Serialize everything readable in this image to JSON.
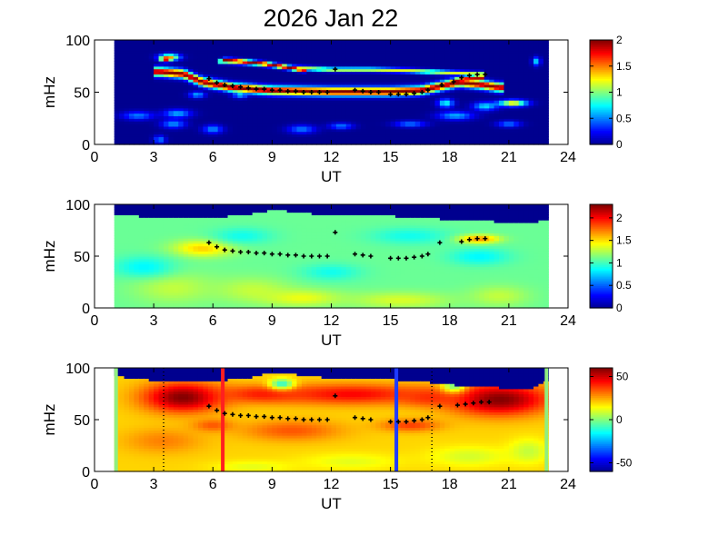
{
  "title": "2026 Jan 22",
  "chart_data": [
    {
      "type": "heatmap",
      "xlabel": "UT",
      "ylabel": "mHz",
      "xlim": [
        0,
        24
      ],
      "ylim": [
        0,
        100
      ],
      "x_ticks": [
        "0",
        "3",
        "6",
        "9",
        "12",
        "15",
        "18",
        "21",
        "24"
      ],
      "y_ticks": [
        "0",
        "50",
        "100"
      ],
      "data_extent_ut": [
        1.0,
        23.0
      ],
      "colorbar": {
        "range": [
          0,
          2
        ],
        "ticks": [
          "0",
          "0.5",
          "1",
          "1.5",
          "2"
        ]
      },
      "colormap": [
        "#00008f",
        "#0000ff",
        "#0080ff",
        "#00ffff",
        "#80ff80",
        "#ffff00",
        "#ff8000",
        "#ff0000",
        "#800000"
      ],
      "background": "#00008f",
      "bands": [
        {
          "points": [
            [
              3.3,
              70
            ],
            [
              4.5,
              68
            ],
            [
              5.5,
              60
            ],
            [
              7,
              55
            ],
            [
              9,
              52
            ],
            [
              12,
              51
            ],
            [
              15,
              51
            ],
            [
              16.5,
              52
            ],
            [
              17.5,
              56
            ],
            [
              18.5,
              60
            ],
            [
              19.5,
              58
            ],
            [
              20.5,
              55
            ]
          ],
          "width_mhz": 10,
          "intensity": 2.0
        },
        {
          "points": [
            [
              6.5,
              80
            ],
            [
              8,
              78
            ],
            [
              10,
              74
            ],
            [
              12,
              72
            ],
            [
              14,
              72
            ],
            [
              16,
              71
            ],
            [
              18,
              69
            ],
            [
              19.5,
              68
            ]
          ],
          "width_mhz": 5,
          "intensity": 1.2
        },
        {
          "points": [
            [
              6.8,
              81
            ],
            [
              8.5,
              78
            ],
            [
              10.5,
              72
            ]
          ],
          "width_mhz": 5,
          "intensity": 2.0
        },
        {
          "points": [
            [
              17.5,
              55
            ],
            [
              18.5,
              62
            ],
            [
              19.5,
              64
            ]
          ],
          "width_mhz": 8,
          "intensity": 1.9
        }
      ],
      "blobs": [
        {
          "x": 3.8,
          "y": 84,
          "rx": 0.5,
          "ry": 3,
          "v": 1.4
        },
        {
          "x": 3.6,
          "y": 82,
          "rx": 0.25,
          "ry": 2,
          "v": 2.0
        },
        {
          "x": 2.2,
          "y": 28,
          "rx": 0.8,
          "ry": 4,
          "v": 0.5
        },
        {
          "x": 4.2,
          "y": 30,
          "rx": 0.7,
          "ry": 4,
          "v": 0.6
        },
        {
          "x": 4.0,
          "y": 20,
          "rx": 0.6,
          "ry": 4,
          "v": 0.55
        },
        {
          "x": 3.3,
          "y": 5,
          "rx": 0.3,
          "ry": 4,
          "v": 0.5
        },
        {
          "x": 6.0,
          "y": 15,
          "rx": 0.5,
          "ry": 4,
          "v": 0.55
        },
        {
          "x": 10.5,
          "y": 15,
          "rx": 0.7,
          "ry": 4,
          "v": 0.5
        },
        {
          "x": 12.5,
          "y": 18,
          "rx": 0.6,
          "ry": 3,
          "v": 0.5
        },
        {
          "x": 16.0,
          "y": 20,
          "rx": 0.8,
          "ry": 3,
          "v": 0.5
        },
        {
          "x": 18.3,
          "y": 28,
          "rx": 0.9,
          "ry": 4,
          "v": 0.6
        },
        {
          "x": 17.8,
          "y": 40,
          "rx": 0.4,
          "ry": 4,
          "v": 0.8
        },
        {
          "x": 19.8,
          "y": 37,
          "rx": 0.6,
          "ry": 4,
          "v": 0.7
        },
        {
          "x": 21.2,
          "y": 40,
          "rx": 0.7,
          "ry": 3,
          "v": 1.4
        },
        {
          "x": 22.4,
          "y": 80,
          "rx": 0.2,
          "ry": 4,
          "v": 0.7
        },
        {
          "x": 21.0,
          "y": 20,
          "rx": 0.6,
          "ry": 3,
          "v": 0.5
        },
        {
          "x": 5.2,
          "y": 48,
          "rx": 0.4,
          "ry": 3,
          "v": 0.6
        },
        {
          "x": 7.4,
          "y": 48,
          "rx": 0.4,
          "ry": 3,
          "v": 0.7
        }
      ],
      "markers": [
        [
          5.8,
          63
        ],
        [
          6.2,
          59
        ],
        [
          6.6,
          57
        ],
        [
          7.0,
          56
        ],
        [
          7.4,
          55
        ],
        [
          7.8,
          54
        ],
        [
          8.2,
          53
        ],
        [
          8.6,
          53
        ],
        [
          9.0,
          52
        ],
        [
          9.4,
          52
        ],
        [
          9.8,
          51
        ],
        [
          10.2,
          51
        ],
        [
          10.6,
          50
        ],
        [
          11.0,
          50
        ],
        [
          11.4,
          50
        ],
        [
          11.8,
          50
        ],
        [
          12.2,
          72
        ],
        [
          13.2,
          52
        ],
        [
          13.6,
          51
        ],
        [
          14.0,
          50
        ],
        [
          14.4,
          50
        ],
        [
          15.0,
          48
        ],
        [
          15.4,
          48
        ],
        [
          15.8,
          48
        ],
        [
          16.2,
          49
        ],
        [
          16.6,
          50
        ],
        [
          16.9,
          52
        ],
        [
          17.6,
          57
        ],
        [
          18.2,
          60
        ],
        [
          18.6,
          64
        ],
        [
          19.0,
          66
        ],
        [
          19.4,
          67
        ],
        [
          19.8,
          67
        ]
      ]
    },
    {
      "type": "heatmap",
      "xlabel": "UT",
      "ylabel": "mHz",
      "xlim": [
        0,
        24
      ],
      "ylim": [
        0,
        100
      ],
      "x_ticks": [
        "0",
        "3",
        "6",
        "9",
        "12",
        "15",
        "18",
        "21",
        "24"
      ],
      "y_ticks": [
        "0",
        "50",
        "100"
      ],
      "data_extent_ut": [
        1.0,
        23.0
      ],
      "colorbar": {
        "range": [
          0,
          2.3
        ],
        "ticks": [
          "0",
          "0.5",
          "1",
          "1.5",
          "2"
        ]
      },
      "colormap": [
        "#00008f",
        "#0000ff",
        "#0080ff",
        "#00ffff",
        "#80ff80",
        "#ffff00",
        "#ff8000",
        "#ff0000",
        "#800000"
      ],
      "background": "#7fffd4",
      "top_mask": [
        [
          1,
          91
        ],
        [
          2,
          89
        ],
        [
          3,
          88
        ],
        [
          4,
          86
        ],
        [
          5,
          88
        ],
        [
          6,
          88
        ],
        [
          7,
          89
        ],
        [
          8,
          91
        ],
        [
          9,
          95
        ],
        [
          10,
          93
        ],
        [
          11,
          91
        ],
        [
          12,
          90
        ],
        [
          13,
          90
        ],
        [
          14,
          89
        ],
        [
          15,
          89
        ],
        [
          16,
          88
        ],
        [
          17,
          87
        ],
        [
          18,
          85
        ],
        [
          19,
          86
        ],
        [
          20,
          84
        ],
        [
          21,
          83
        ],
        [
          22,
          82
        ],
        [
          23,
          86
        ]
      ],
      "field_base": 1.1,
      "blobs": [
        {
          "x": 5.5,
          "y": 58,
          "rx": 1.5,
          "ry": 8,
          "v": 1.55
        },
        {
          "x": 4.0,
          "y": 20,
          "rx": 2.0,
          "ry": 15,
          "v": 1.3
        },
        {
          "x": 8.0,
          "y": 18,
          "rx": 2.0,
          "ry": 12,
          "v": 1.3
        },
        {
          "x": 10.5,
          "y": 10,
          "rx": 2.0,
          "ry": 8,
          "v": 1.4
        },
        {
          "x": 15.5,
          "y": 8,
          "rx": 2.5,
          "ry": 8,
          "v": 1.35
        },
        {
          "x": 20.5,
          "y": 12,
          "rx": 1.5,
          "ry": 10,
          "v": 1.3
        },
        {
          "x": 2.5,
          "y": 40,
          "rx": 1.5,
          "ry": 10,
          "v": 0.85
        },
        {
          "x": 12.0,
          "y": 35,
          "rx": 1.5,
          "ry": 8,
          "v": 0.9
        },
        {
          "x": 19.5,
          "y": 50,
          "rx": 1.5,
          "ry": 8,
          "v": 0.85
        },
        {
          "x": 7.5,
          "y": 70,
          "rx": 1.5,
          "ry": 8,
          "v": 0.9
        },
        {
          "x": 16.0,
          "y": 70,
          "rx": 2.0,
          "ry": 8,
          "v": 0.9
        },
        {
          "x": 19.5,
          "y": 67,
          "rx": 1.0,
          "ry": 4,
          "v": 1.7
        }
      ],
      "markers": [
        [
          5.8,
          63
        ],
        [
          6.2,
          59
        ],
        [
          6.6,
          56
        ],
        [
          7.0,
          55
        ],
        [
          7.4,
          54
        ],
        [
          7.8,
          54
        ],
        [
          8.2,
          53
        ],
        [
          8.6,
          53
        ],
        [
          9.0,
          52
        ],
        [
          9.4,
          52
        ],
        [
          9.8,
          51
        ],
        [
          10.2,
          51
        ],
        [
          10.6,
          50
        ],
        [
          11.0,
          50
        ],
        [
          11.4,
          50
        ],
        [
          11.8,
          50
        ],
        [
          12.2,
          73
        ],
        [
          13.2,
          52
        ],
        [
          13.6,
          51
        ],
        [
          14.0,
          50
        ],
        [
          15.0,
          48
        ],
        [
          15.4,
          48
        ],
        [
          15.8,
          48
        ],
        [
          16.2,
          49
        ],
        [
          16.6,
          50
        ],
        [
          16.9,
          52
        ],
        [
          17.5,
          63
        ],
        [
          18.6,
          64
        ],
        [
          19.0,
          66
        ],
        [
          19.4,
          67
        ],
        [
          19.8,
          67
        ]
      ]
    },
    {
      "type": "heatmap",
      "xlabel": "UT",
      "ylabel": "mHz",
      "xlim": [
        0,
        24
      ],
      "ylim": [
        0,
        100
      ],
      "x_ticks": [
        "0",
        "3",
        "6",
        "9",
        "12",
        "15",
        "18",
        "21",
        "24"
      ],
      "y_ticks": [
        "0",
        "50",
        "100"
      ],
      "data_extent_ut": [
        1.0,
        23.0
      ],
      "colorbar": {
        "range": [
          -60,
          60
        ],
        "ticks": [
          "-50",
          "0",
          "50"
        ]
      },
      "colormap": [
        "#00008f",
        "#0000ff",
        "#0080ff",
        "#00ffff",
        "#80ff80",
        "#ffff00",
        "#ff8000",
        "#ff0000",
        "#800000"
      ],
      "background": "#ffd000",
      "top_mask": [
        [
          1,
          93
        ],
        [
          2,
          90
        ],
        [
          3,
          88
        ],
        [
          4,
          86
        ],
        [
          5,
          88
        ],
        [
          6,
          88
        ],
        [
          7,
          89
        ],
        [
          8,
          91
        ],
        [
          9,
          96
        ],
        [
          10,
          94
        ],
        [
          11,
          92
        ],
        [
          12,
          90
        ],
        [
          13,
          90
        ],
        [
          14,
          90
        ],
        [
          15,
          89
        ],
        [
          16,
          88
        ],
        [
          17,
          86
        ],
        [
          18,
          84
        ],
        [
          19,
          83
        ],
        [
          20,
          82
        ],
        [
          21,
          80
        ],
        [
          22,
          80
        ],
        [
          23,
          88
        ]
      ],
      "field_base": 20,
      "blobs": [
        {
          "x": 4.5,
          "y": 72,
          "rx": 2.0,
          "ry": 14,
          "v": 60
        },
        {
          "x": 20.5,
          "y": 70,
          "rx": 2.5,
          "ry": 15,
          "v": 60
        },
        {
          "x": 13.0,
          "y": 75,
          "rx": 4.0,
          "ry": 10,
          "v": 45
        },
        {
          "x": 8.5,
          "y": 75,
          "rx": 2.0,
          "ry": 8,
          "v": 42
        },
        {
          "x": 17.0,
          "y": 72,
          "rx": 1.5,
          "ry": 8,
          "v": 40
        },
        {
          "x": 10.0,
          "y": 40,
          "rx": 2.5,
          "ry": 10,
          "v": 35
        },
        {
          "x": 3.5,
          "y": 30,
          "rx": 2.0,
          "ry": 12,
          "v": 30
        },
        {
          "x": 19.0,
          "y": 15,
          "rx": 2.0,
          "ry": 10,
          "v": 10
        },
        {
          "x": 22.0,
          "y": 20,
          "rx": 1.0,
          "ry": 12,
          "v": 8
        },
        {
          "x": 13.0,
          "y": 10,
          "rx": 2.5,
          "ry": 8,
          "v": 12
        },
        {
          "x": 8.0,
          "y": 5,
          "rx": 2.0,
          "ry": 6,
          "v": 12
        },
        {
          "x": 9.5,
          "y": 85,
          "rx": 0.6,
          "ry": 5,
          "v": -10
        },
        {
          "x": 18.2,
          "y": 83,
          "rx": 0.6,
          "ry": 6,
          "v": 0
        },
        {
          "x": 16.0,
          "y": 45,
          "rx": 1.5,
          "ry": 6,
          "v": 38
        },
        {
          "x": 6.0,
          "y": 45,
          "rx": 1.0,
          "ry": 6,
          "v": 35
        }
      ],
      "edge_color": "#90ee80",
      "markers": [
        [
          5.8,
          63
        ],
        [
          6.2,
          59
        ],
        [
          6.6,
          56
        ],
        [
          7.0,
          55
        ],
        [
          7.4,
          54
        ],
        [
          7.8,
          54
        ],
        [
          8.2,
          53
        ],
        [
          8.6,
          53
        ],
        [
          9.0,
          52
        ],
        [
          9.4,
          52
        ],
        [
          9.8,
          51
        ],
        [
          10.2,
          51
        ],
        [
          10.6,
          50
        ],
        [
          11.0,
          50
        ],
        [
          11.4,
          50
        ],
        [
          11.8,
          50
        ],
        [
          12.2,
          73
        ],
        [
          13.2,
          52
        ],
        [
          13.6,
          51
        ],
        [
          14.0,
          50
        ],
        [
          15.0,
          48
        ],
        [
          15.4,
          48
        ],
        [
          15.8,
          48
        ],
        [
          16.2,
          49
        ],
        [
          16.6,
          50
        ],
        [
          16.9,
          52
        ],
        [
          17.5,
          63
        ],
        [
          18.4,
          64
        ],
        [
          18.8,
          65
        ],
        [
          19.2,
          66
        ],
        [
          19.6,
          67
        ],
        [
          20.0,
          67
        ]
      ],
      "vlines": [
        {
          "x": 6.5,
          "color": "#ff2020",
          "style": "solid"
        },
        {
          "x": 15.3,
          "color": "#1f3bff",
          "style": "solid"
        },
        {
          "x": 3.5,
          "color": "#000000",
          "style": "dotted"
        },
        {
          "x": 17.1,
          "color": "#000000",
          "style": "dotted"
        }
      ]
    }
  ]
}
